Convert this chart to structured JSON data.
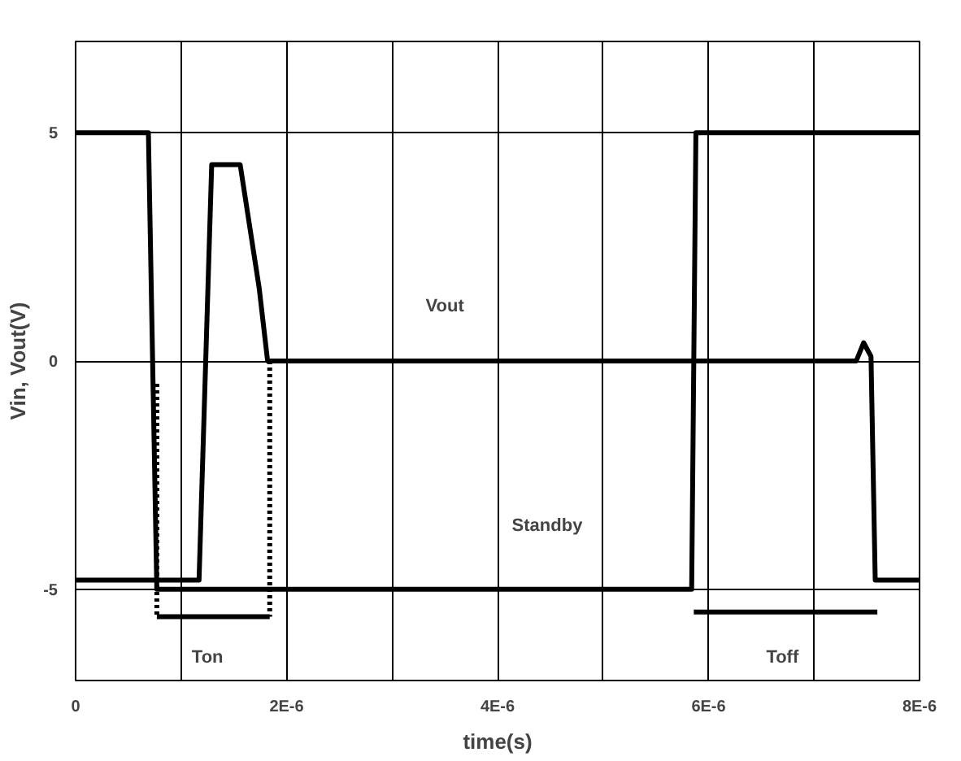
{
  "chart_data": {
    "type": "line",
    "xlabel": "time(s)",
    "ylabel": "Vin, Vout(V)",
    "xlim": [
      0,
      8e-06
    ],
    "ylim": [
      -7,
      7
    ],
    "xticks": [
      0,
      {
        "value": 1e-06,
        "label": null
      },
      {
        "value": 2e-06,
        "label": "2E-6"
      },
      {
        "value": 3e-06,
        "label": null
      },
      {
        "value": 4e-06,
        "label": "4E-6"
      },
      {
        "value": 5e-06,
        "label": null
      },
      {
        "value": 6e-06,
        "label": "6E-6"
      },
      {
        "value": 7e-06,
        "label": null
      },
      {
        "value": 8e-06,
        "label": "8E-6"
      }
    ],
    "yticks": [
      -5,
      0,
      5
    ],
    "grid": true,
    "series": [
      {
        "color": "#000000",
        "x": [
          0,
          6.9e-07,
          7.7e-07,
          5.84e-06,
          5.88e-06,
          8e-06
        ],
        "values": [
          5,
          5,
          -5,
          -5,
          5,
          5
        ]
      },
      {
        "color": "#000000",
        "x": [
          0,
          1.17e-06,
          1.29e-06,
          1.56e-06,
          1.74e-06,
          1.82e-06,
          7.4e-06,
          7.47e-06,
          7.54e-06,
          7.58e-06,
          8e-06
        ],
        "values": [
          -4.8,
          -4.8,
          4.3,
          4.3,
          1.6,
          0,
          0,
          0.4,
          0.1,
          -4.8,
          -4.8
        ]
      },
      {
        "color": "#000000",
        "line_style": "dotted",
        "x": [
          7.7e-07,
          7.7e-07
        ],
        "values": [
          -0.5,
          -5.6
        ]
      },
      {
        "color": "#000000",
        "line_style": "dotted",
        "x": [
          1.84e-06,
          1.84e-06
        ],
        "values": [
          0,
          -5.6
        ]
      },
      {
        "color": "#000000",
        "x": [
          7.7e-07,
          1.84e-06
        ],
        "values": [
          -5.6,
          -5.6
        ]
      },
      {
        "color": "#000000",
        "x": [
          5.86e-06,
          7.6e-06
        ],
        "values": [
          -5.5,
          -5.5
        ]
      }
    ],
    "annotations": [
      {
        "text": "Vout",
        "x": 3.5e-06,
        "y": 1.2
      },
      {
        "text": "Ton",
        "x": 1.25e-06,
        "y": -6.5
      },
      "Standby",
      {
        "text": "Toff",
        "x": 6.7e-06,
        "y": -6.5
      }
    ]
  }
}
